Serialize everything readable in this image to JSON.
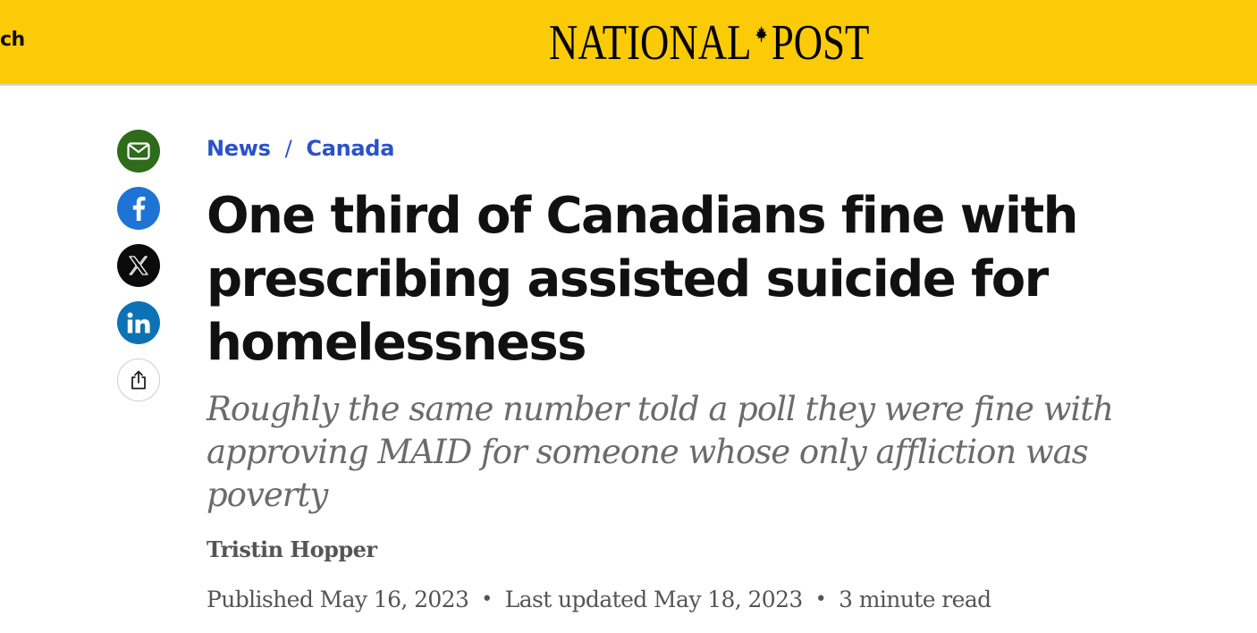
{
  "header": {
    "nav_fragment": "ch",
    "logo_left": "NATIONAL",
    "logo_right": "POST",
    "background_color": "#fccb07"
  },
  "share": {
    "buttons": [
      {
        "name": "email",
        "icon": "envelope-icon",
        "color": "#2e6b1a"
      },
      {
        "name": "facebook",
        "icon": "facebook-icon",
        "color": "#1d74d4"
      },
      {
        "name": "x",
        "icon": "x-icon",
        "color": "#0b0b0b"
      },
      {
        "name": "linkedin",
        "icon": "linkedin-icon",
        "color": "#0c72b3"
      },
      {
        "name": "more",
        "icon": "share-icon",
        "color": "#ffffff"
      }
    ]
  },
  "breadcrumb": {
    "items": [
      "News",
      "Canada"
    ],
    "separator": "/",
    "color": "#2b52c7"
  },
  "article": {
    "headline": "One third of Canadians fine with prescribing assisted suicide for homelessness",
    "subheadline": "Roughly the same number told a poll they were fine with approving MAID for someone whose only affliction was poverty",
    "author": "Tristin Hopper",
    "published": "Published May 16, 2023",
    "updated": "Last updated May 18, 2023",
    "read_time": "3 minute read",
    "meta_separator": "•"
  }
}
